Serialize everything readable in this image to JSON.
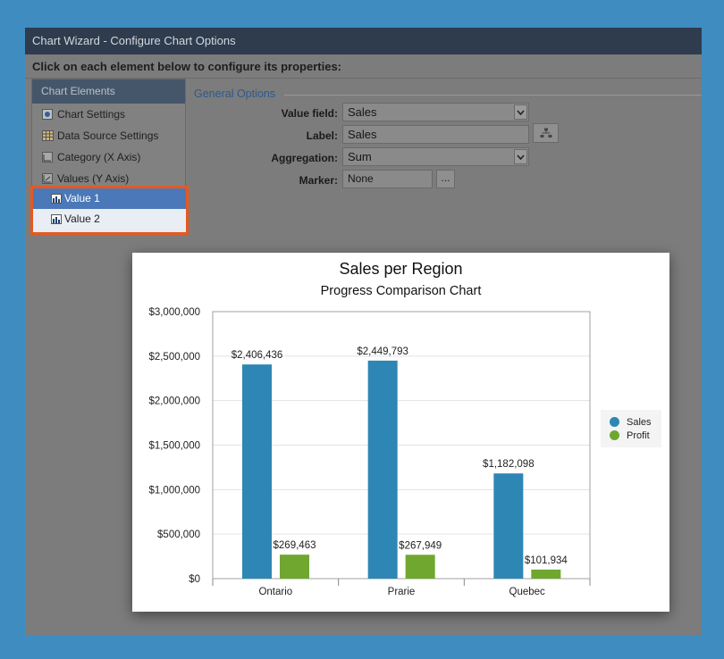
{
  "window": {
    "title": "Chart Wizard - Configure Chart Options",
    "instructions": "Click on each element below to configure its properties:"
  },
  "sidebar": {
    "header": "Chart Elements",
    "items": [
      {
        "label": "Chart Settings",
        "icon": "gear-icon"
      },
      {
        "label": "Data Source Settings",
        "icon": "table-icon"
      },
      {
        "label": "Category (X Axis)",
        "icon": "x-axis-icon"
      },
      {
        "label": "Values (Y Axis)",
        "icon": "y-axis-icon"
      }
    ],
    "values": [
      {
        "label": "Value 1",
        "icon": "bar-chart-icon",
        "selected": true
      },
      {
        "label": "Value 2",
        "icon": "bar-chart-icon",
        "selected": false
      }
    ]
  },
  "options": {
    "section_title": "General Options",
    "value_field": {
      "label": "Value field:",
      "value": "Sales"
    },
    "label_field": {
      "label": "Label:",
      "value": "Sales"
    },
    "aggregation": {
      "label": "Aggregation:",
      "value": "Sum"
    },
    "marker": {
      "label": "Marker:",
      "value": "None",
      "button": "..."
    }
  },
  "colors": {
    "highlight": "#e8581e",
    "sales": "#2e86b4",
    "profit": "#6fa72f"
  },
  "chart_data": {
    "type": "bar",
    "title": "Sales per Region",
    "subtitle": "Progress Comparison Chart",
    "categories": [
      "Ontario",
      "Prarie",
      "Quebec"
    ],
    "series": [
      {
        "name": "Sales",
        "values": [
          2406436,
          2449793,
          1182098
        ],
        "labels": [
          "$2,406,436",
          "$2,449,793",
          "$1,182,098"
        ]
      },
      {
        "name": "Profit",
        "values": [
          269463,
          267949,
          101934
        ],
        "labels": [
          "$269,463",
          "$267,949",
          "$101,934"
        ]
      }
    ],
    "ylim": [
      0,
      3000000
    ],
    "y_ticks": [
      0,
      500000,
      1000000,
      1500000,
      2000000,
      2500000,
      3000000
    ],
    "y_tick_labels": [
      "$0",
      "$500,000",
      "$1,000,000",
      "$1,500,000",
      "$2,000,000",
      "$2,500,000",
      "$3,000,000"
    ],
    "grid": true,
    "legend": "right"
  }
}
